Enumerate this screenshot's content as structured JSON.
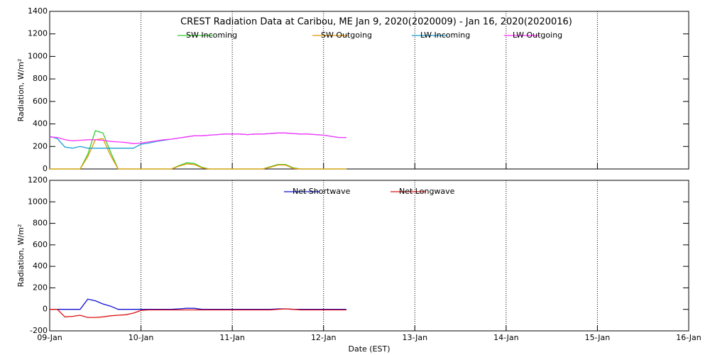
{
  "chart_data": [
    {
      "type": "line",
      "title": "CREST Radiation Data at Caribou, ME   Jan  9, 2020(2020009) - Jan 16, 2020(2020016)",
      "y_label": "Radiation, W/m²",
      "x": [
        0,
        2,
        4,
        6,
        8,
        10,
        12,
        14,
        16,
        18,
        20,
        22,
        24,
        26,
        28,
        30,
        32,
        34,
        36,
        38,
        40,
        42,
        44,
        46,
        48,
        50,
        52,
        54,
        56,
        58,
        60,
        62,
        64,
        66,
        68,
        70,
        72,
        74,
        76,
        78
      ],
      "series": [
        {
          "name": "SW Incoming",
          "color": "#33cc33",
          "values": [
            0,
            0,
            0,
            0,
            0,
            130,
            340,
            320,
            150,
            0,
            0,
            0,
            0,
            0,
            0,
            0,
            0,
            30,
            55,
            50,
            15,
            0,
            0,
            0,
            0,
            0,
            0,
            0,
            0,
            20,
            40,
            40,
            10,
            0,
            0,
            0,
            0,
            0,
            0,
            0
          ]
        },
        {
          "name": "SW Outgoing",
          "color": "#e69500",
          "values": [
            0,
            0,
            0,
            0,
            0,
            110,
            260,
            270,
            120,
            0,
            0,
            0,
            0,
            0,
            0,
            0,
            0,
            25,
            45,
            40,
            10,
            0,
            0,
            0,
            0,
            0,
            0,
            0,
            0,
            15,
            35,
            35,
            5,
            0,
            0,
            0,
            0,
            0,
            0,
            0
          ]
        },
        {
          "name": "LW Incoming",
          "color": "#1a9fd0",
          "values": [
            290,
            270,
            195,
            185,
            200,
            185,
            185,
            185,
            185,
            185,
            185,
            185,
            220,
            230,
            245,
            255,
            265,
            275,
            285,
            295,
            295,
            300,
            305,
            310,
            310,
            310,
            305,
            310,
            310,
            315,
            320,
            320,
            315,
            310,
            310,
            305,
            300,
            290,
            280,
            280
          ]
        },
        {
          "name": "LW Outgoing",
          "color": "#ff33ff",
          "values": [
            285,
            280,
            260,
            250,
            255,
            260,
            260,
            255,
            245,
            240,
            235,
            225,
            230,
            240,
            250,
            260,
            265,
            275,
            285,
            295,
            295,
            300,
            305,
            310,
            310,
            310,
            305,
            310,
            310,
            315,
            320,
            320,
            315,
            310,
            310,
            305,
            300,
            290,
            280,
            280
          ]
        }
      ],
      "xlim": [
        0,
        168
      ],
      "xticks": [
        0,
        24,
        48,
        72,
        96,
        120,
        144,
        168
      ],
      "ylim": [
        0,
        1400
      ],
      "yticks": [
        0,
        200,
        400,
        600,
        800,
        1000,
        1200,
        1400
      ],
      "grid": true
    },
    {
      "type": "line",
      "y_label": "Radiation, W/m²",
      "x_label": "Date (EST)",
      "x": [
        0,
        2,
        4,
        6,
        8,
        10,
        12,
        14,
        16,
        18,
        20,
        22,
        24,
        26,
        28,
        30,
        32,
        34,
        36,
        38,
        40,
        42,
        44,
        46,
        48,
        50,
        52,
        54,
        56,
        58,
        60,
        62,
        64,
        66,
        68,
        70,
        72,
        74,
        76,
        78
      ],
      "series": [
        {
          "name": "Net Shortwave",
          "color": "#1010d0",
          "values": [
            0,
            0,
            0,
            0,
            0,
            95,
            80,
            50,
            30,
            0,
            0,
            0,
            0,
            0,
            0,
            0,
            0,
            5,
            10,
            10,
            0,
            0,
            0,
            0,
            0,
            0,
            0,
            0,
            0,
            0,
            5,
            5,
            0,
            0,
            0,
            0,
            0,
            0,
            0,
            0
          ]
        },
        {
          "name": "Net Longwave",
          "color": "#dd1111",
          "values": [
            0,
            0,
            -70,
            -65,
            -55,
            -75,
            -75,
            -70,
            -60,
            -55,
            -50,
            -35,
            -10,
            -5,
            -5,
            -5,
            -5,
            -5,
            -5,
            -5,
            -5,
            -5,
            -5,
            -5,
            -5,
            -5,
            -5,
            -5,
            -5,
            -5,
            0,
            5,
            0,
            -5,
            -5,
            -5,
            -5,
            -5,
            -5,
            -5
          ]
        }
      ],
      "xlim": [
        0,
        168
      ],
      "xticks": [
        {
          "value": 0,
          "label": "09-Jan"
        },
        {
          "value": 24,
          "label": "10-Jan"
        },
        {
          "value": 48,
          "label": "11-Jan"
        },
        {
          "value": 72,
          "label": "12-Jan"
        },
        {
          "value": 96,
          "label": "13-Jan"
        },
        {
          "value": 120,
          "label": "14-Jan"
        },
        {
          "value": 144,
          "label": "15-Jan"
        },
        {
          "value": 168,
          "label": "16-Jan"
        }
      ],
      "ylim": [
        -200,
        1200
      ],
      "yticks": [
        -200,
        0,
        200,
        400,
        600,
        800,
        1000,
        1200
      ],
      "grid": true
    }
  ]
}
